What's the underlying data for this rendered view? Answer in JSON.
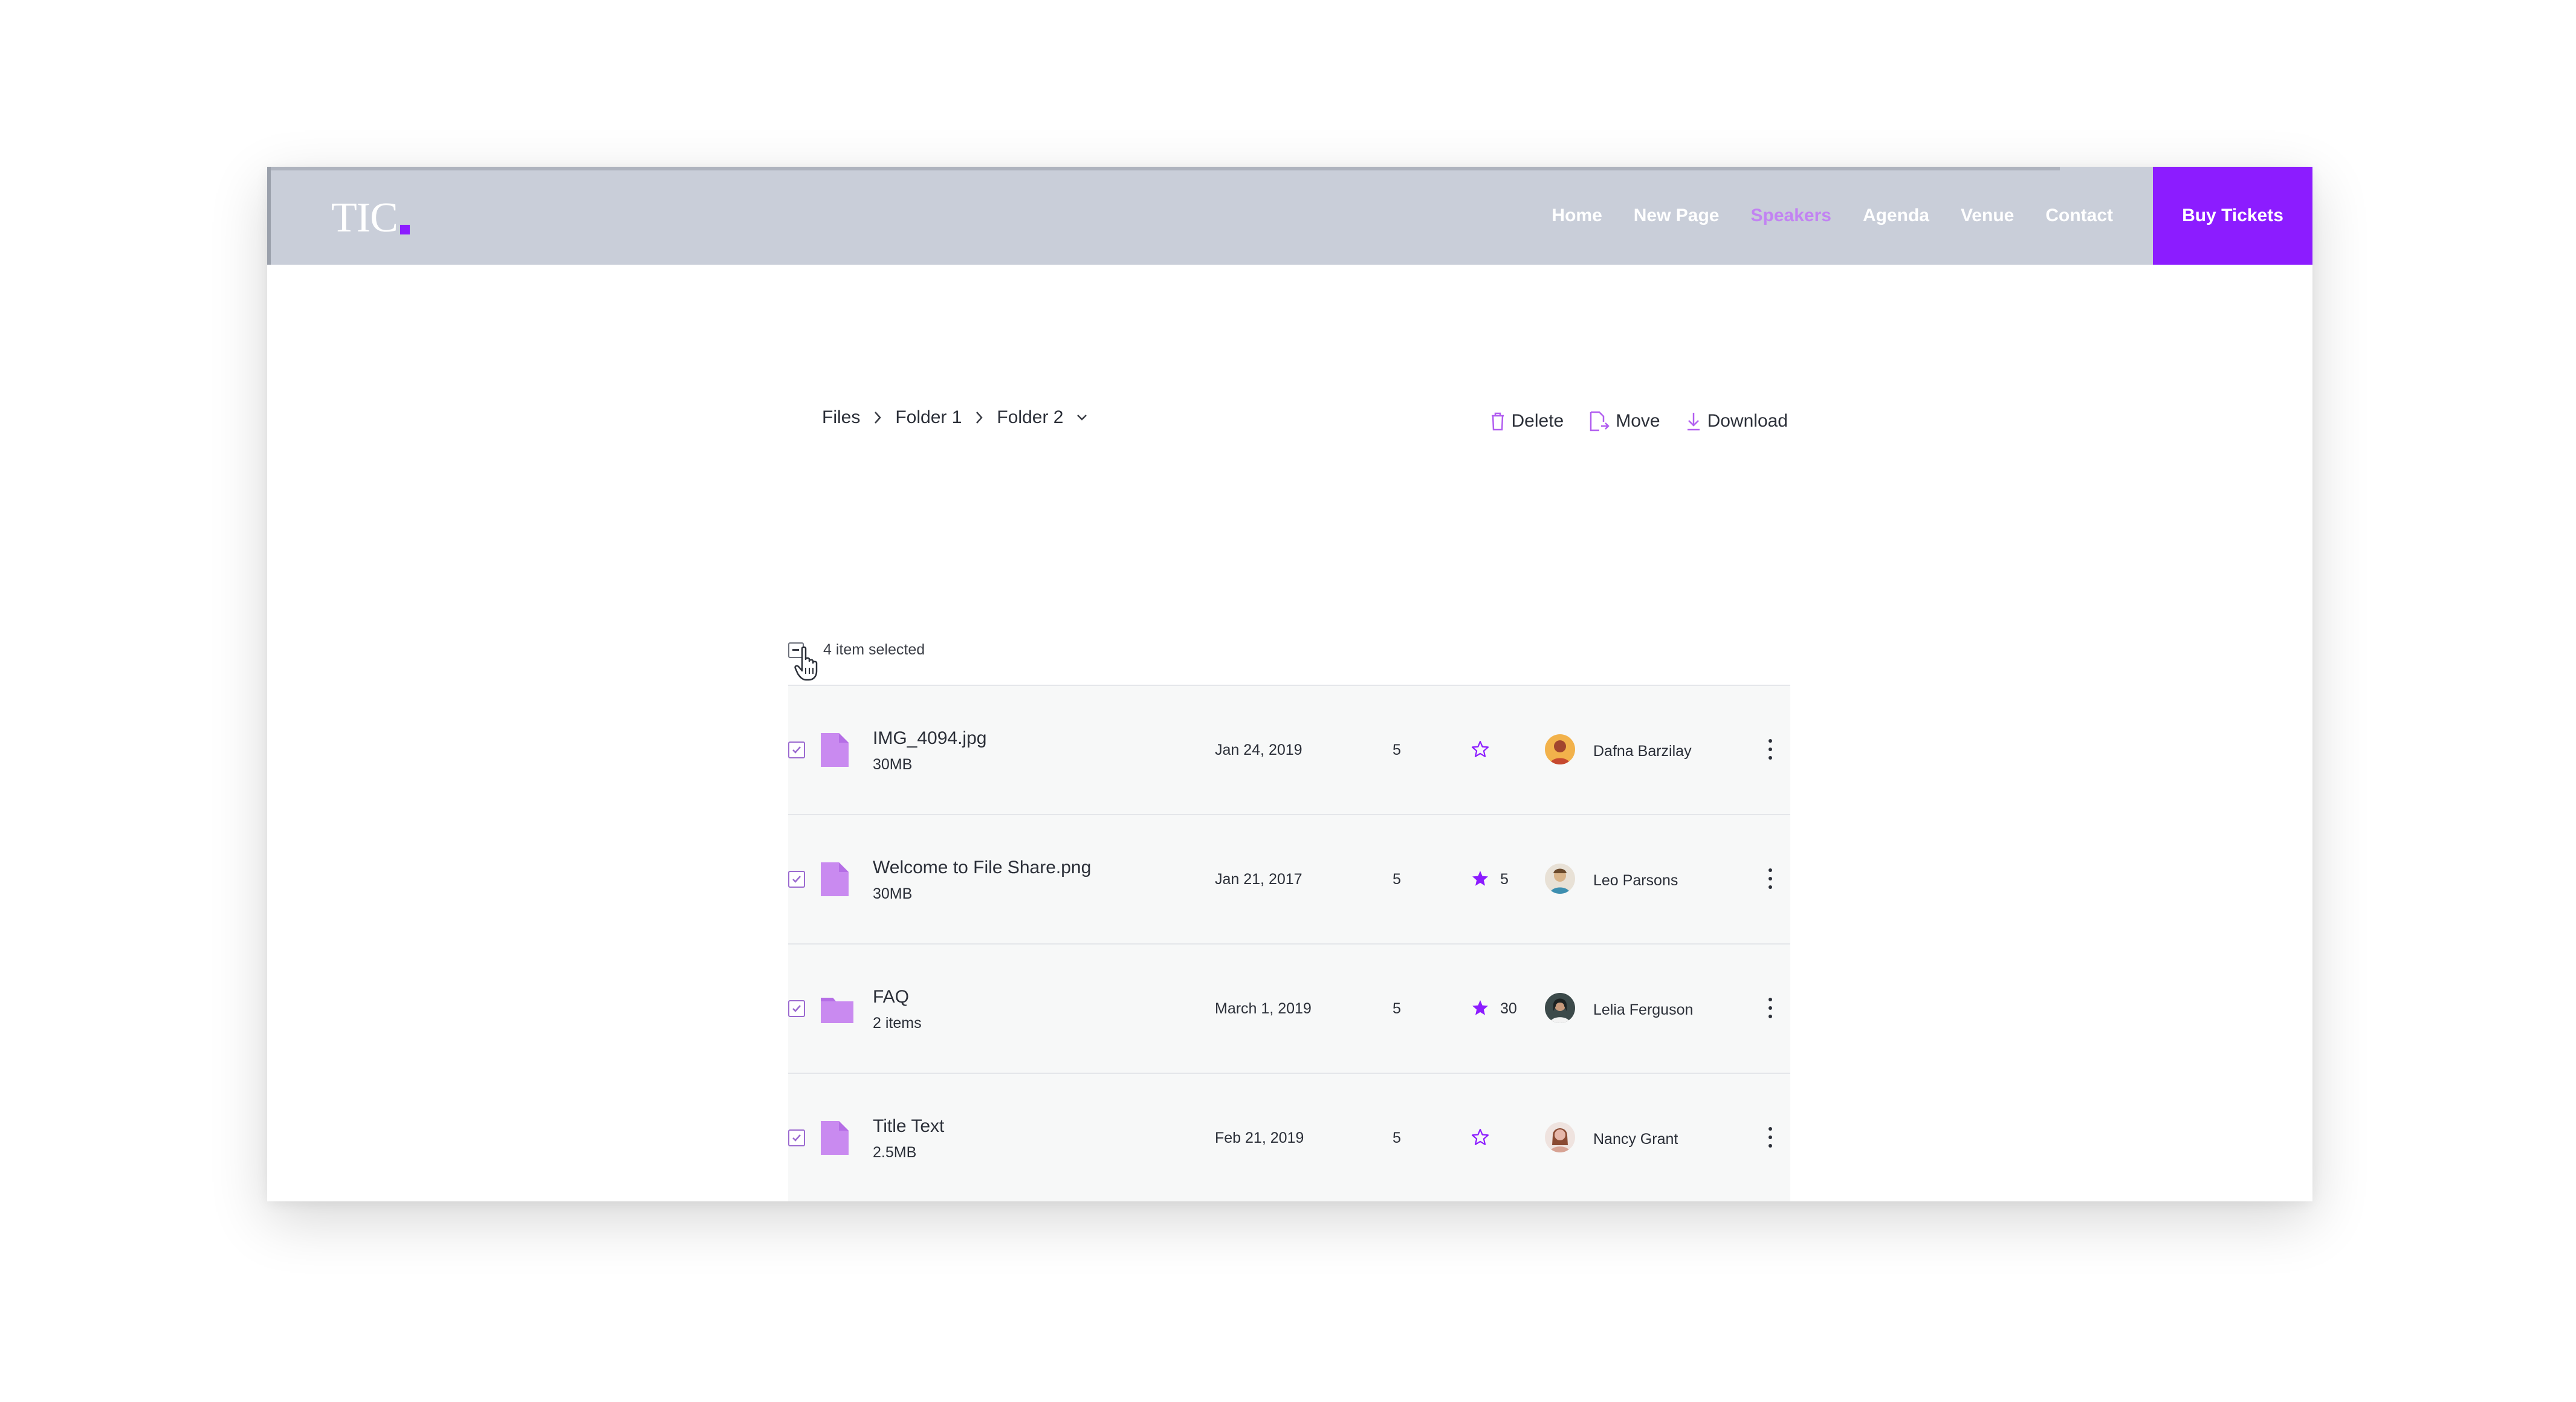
{
  "theme": {
    "accent": "#8c1cff",
    "active_nav": "#c283f2",
    "header_bg": "#c9ced9",
    "icon": "#c98af0"
  },
  "header": {
    "logo": "TIC",
    "nav": [
      "Home",
      "New Page",
      "Speakers",
      "Agenda",
      "Venue",
      "Contact"
    ],
    "active_nav": "Speakers",
    "cta": "Buy Tickets"
  },
  "breadcrumb": [
    "Files",
    "Folder 1",
    "Folder 2"
  ],
  "actions": {
    "delete": "Delete",
    "move": "Move",
    "download": "Download"
  },
  "selection": {
    "label": "4 item selected"
  },
  "files": [
    {
      "type": "file",
      "name": "IMG_4094.jpg",
      "meta": "30MB",
      "date": "Jan 24, 2019",
      "count": "5",
      "starred": false,
      "stars": "",
      "owner": "Dafna Barzilay",
      "avatar_bg": "#f2b24b"
    },
    {
      "type": "file",
      "name": "Welcome to File Share.png",
      "meta": "30MB",
      "date": "Jan 21, 2017",
      "count": "5",
      "starred": true,
      "stars": "5",
      "owner": "Leo Parsons",
      "avatar_bg": "#d9b48a"
    },
    {
      "type": "folder",
      "name": "FAQ",
      "meta": "2 items",
      "date": "March 1, 2019",
      "count": "5",
      "starred": true,
      "stars": "30",
      "owner": "Lelia Ferguson",
      "avatar_bg": "#3c4a4a"
    },
    {
      "type": "file",
      "name": "Title Text",
      "meta": "2.5MB",
      "date": "Feb 21, 2019",
      "count": "5",
      "starred": false,
      "stars": "",
      "owner": "Nancy Grant",
      "avatar_bg": "#e6b7aa"
    }
  ]
}
